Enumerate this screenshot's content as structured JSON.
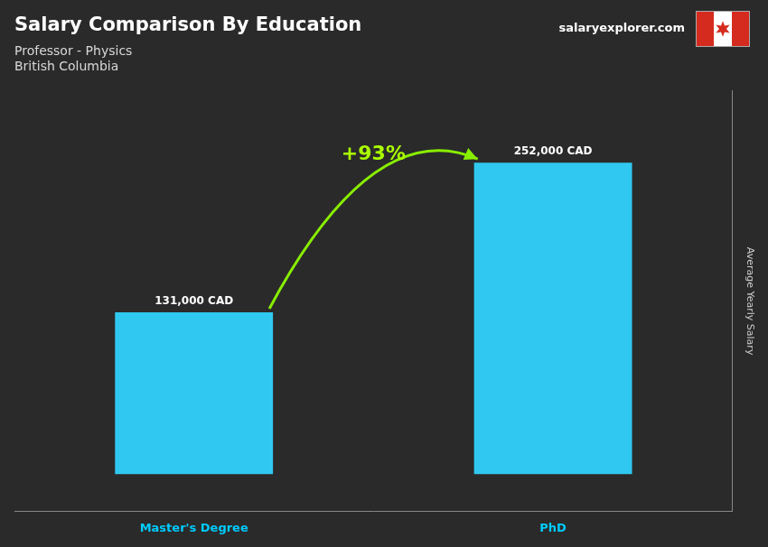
{
  "chart_data": {
    "type": "bar",
    "title": "Salary Comparison By Education",
    "subtitle": [
      "Professor - Physics",
      "British Columbia"
    ],
    "ylabel": "Average Yearly Salary",
    "annotations": [
      "+93%",
      "salaryexplorer.com"
    ],
    "categories": [
      "Master's Degree",
      "PhD"
    ],
    "values": [
      131000,
      252000
    ],
    "value_labels": [
      "131,000 CAD",
      "252,000 CAD"
    ],
    "data_labels": true,
    "color": "#30c8f0",
    "ylim": [
      -30000,
      310000
    ],
    "grid": false,
    "tick_labels": "x"
  }
}
